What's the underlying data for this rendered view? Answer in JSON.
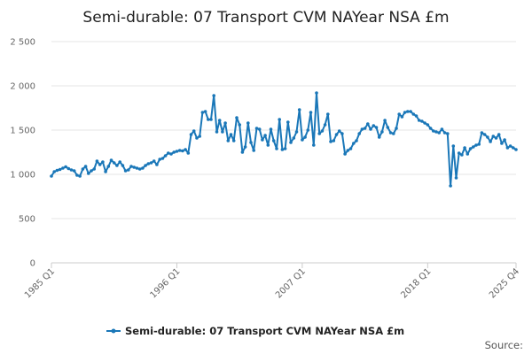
{
  "chart_data": {
    "type": "line",
    "title": "Semi-durable: 07 Transport CVM NAYear NSA £m",
    "xlabel": "",
    "ylabel": "",
    "ylim": [
      0,
      2500
    ],
    "yticks": [
      0,
      500,
      1000,
      1500,
      2000,
      2500
    ],
    "ytick_labels": [
      "0",
      "500",
      "1 000",
      "1 500",
      "2 000",
      "2 500"
    ],
    "x_range": [
      "1985 Q1",
      "2025 Q4"
    ],
    "xtick_labels": [
      {
        "label": "1985 Q1",
        "x": 1985.0
      },
      {
        "label": "1996 Q1",
        "x": 1996.0
      },
      {
        "label": "2007 Q1",
        "x": 2007.0
      },
      {
        "label": "2018 Q1",
        "x": 2018.0
      },
      {
        "label": "2025 Q4",
        "x": 2025.75
      }
    ],
    "grid": "horizontal",
    "legend_position": "bottom",
    "color": "#1a77b8",
    "source_label": "Source:",
    "series": [
      {
        "name": "Semi-durable: 07 Transport CVM NAYear NSA £m",
        "points": [
          [
            1985.0,
            980
          ],
          [
            1985.25,
            1030
          ],
          [
            1985.5,
            1045
          ],
          [
            1985.75,
            1055
          ],
          [
            1986.0,
            1070
          ],
          [
            1986.25,
            1085
          ],
          [
            1986.5,
            1065
          ],
          [
            1986.75,
            1050
          ],
          [
            1987.0,
            1040
          ],
          [
            1987.25,
            990
          ],
          [
            1987.5,
            980
          ],
          [
            1987.75,
            1060
          ],
          [
            1988.0,
            1090
          ],
          [
            1988.25,
            1010
          ],
          [
            1988.5,
            1040
          ],
          [
            1988.75,
            1060
          ],
          [
            1989.0,
            1150
          ],
          [
            1989.25,
            1110
          ],
          [
            1989.5,
            1140
          ],
          [
            1989.75,
            1030
          ],
          [
            1990.0,
            1090
          ],
          [
            1990.25,
            1160
          ],
          [
            1990.5,
            1130
          ],
          [
            1990.75,
            1100
          ],
          [
            1991.0,
            1140
          ],
          [
            1991.25,
            1100
          ],
          [
            1991.5,
            1040
          ],
          [
            1991.75,
            1050
          ],
          [
            1992.0,
            1090
          ],
          [
            1992.25,
            1080
          ],
          [
            1992.5,
            1070
          ],
          [
            1992.75,
            1060
          ],
          [
            1993.0,
            1070
          ],
          [
            1993.25,
            1100
          ],
          [
            1993.5,
            1120
          ],
          [
            1993.75,
            1130
          ],
          [
            1994.0,
            1150
          ],
          [
            1994.25,
            1110
          ],
          [
            1994.5,
            1170
          ],
          [
            1994.75,
            1180
          ],
          [
            1995.0,
            1210
          ],
          [
            1995.25,
            1240
          ],
          [
            1995.5,
            1230
          ],
          [
            1995.75,
            1250
          ],
          [
            1996.0,
            1260
          ],
          [
            1996.25,
            1270
          ],
          [
            1996.5,
            1265
          ],
          [
            1996.75,
            1280
          ],
          [
            1997.0,
            1240
          ],
          [
            1997.25,
            1450
          ],
          [
            1997.5,
            1490
          ],
          [
            1997.75,
            1410
          ],
          [
            1998.0,
            1430
          ],
          [
            1998.25,
            1700
          ],
          [
            1998.5,
            1710
          ],
          [
            1998.75,
            1620
          ],
          [
            1999.0,
            1620
          ],
          [
            1999.25,
            1890
          ],
          [
            1999.5,
            1480
          ],
          [
            1999.75,
            1610
          ],
          [
            2000.0,
            1480
          ],
          [
            2000.25,
            1580
          ],
          [
            2000.5,
            1380
          ],
          [
            2000.75,
            1450
          ],
          [
            2001.0,
            1380
          ],
          [
            2001.25,
            1640
          ],
          [
            2001.5,
            1560
          ],
          [
            2001.75,
            1250
          ],
          [
            2002.0,
            1310
          ],
          [
            2002.25,
            1580
          ],
          [
            2002.5,
            1360
          ],
          [
            2002.75,
            1270
          ],
          [
            2003.0,
            1520
          ],
          [
            2003.25,
            1510
          ],
          [
            2003.5,
            1390
          ],
          [
            2003.75,
            1440
          ],
          [
            2004.0,
            1330
          ],
          [
            2004.25,
            1510
          ],
          [
            2004.5,
            1380
          ],
          [
            2004.75,
            1290
          ],
          [
            2005.0,
            1620
          ],
          [
            2005.25,
            1280
          ],
          [
            2005.5,
            1290
          ],
          [
            2005.75,
            1590
          ],
          [
            2006.0,
            1360
          ],
          [
            2006.25,
            1410
          ],
          [
            2006.5,
            1480
          ],
          [
            2006.75,
            1730
          ],
          [
            2007.0,
            1390
          ],
          [
            2007.25,
            1420
          ],
          [
            2007.5,
            1500
          ],
          [
            2007.75,
            1700
          ],
          [
            2008.0,
            1330
          ],
          [
            2008.25,
            1920
          ],
          [
            2008.5,
            1460
          ],
          [
            2008.75,
            1490
          ],
          [
            2009.0,
            1560
          ],
          [
            2009.25,
            1680
          ],
          [
            2009.5,
            1370
          ],
          [
            2009.75,
            1380
          ],
          [
            2010.0,
            1450
          ],
          [
            2010.25,
            1490
          ],
          [
            2010.5,
            1460
          ],
          [
            2010.75,
            1230
          ],
          [
            2011.0,
            1270
          ],
          [
            2011.25,
            1290
          ],
          [
            2011.5,
            1350
          ],
          [
            2011.75,
            1380
          ],
          [
            2012.0,
            1460
          ],
          [
            2012.25,
            1510
          ],
          [
            2012.5,
            1520
          ],
          [
            2012.75,
            1570
          ],
          [
            2013.0,
            1510
          ],
          [
            2013.25,
            1550
          ],
          [
            2013.5,
            1530
          ],
          [
            2013.75,
            1420
          ],
          [
            2014.0,
            1480
          ],
          [
            2014.25,
            1610
          ],
          [
            2014.5,
            1530
          ],
          [
            2014.75,
            1470
          ],
          [
            2015.0,
            1460
          ],
          [
            2015.25,
            1520
          ],
          [
            2015.5,
            1680
          ],
          [
            2015.75,
            1650
          ],
          [
            2016.0,
            1700
          ],
          [
            2016.25,
            1710
          ],
          [
            2016.5,
            1710
          ],
          [
            2016.75,
            1680
          ],
          [
            2017.0,
            1660
          ],
          [
            2017.25,
            1610
          ],
          [
            2017.5,
            1600
          ],
          [
            2017.75,
            1580
          ],
          [
            2018.0,
            1560
          ],
          [
            2018.25,
            1520
          ],
          [
            2018.5,
            1490
          ],
          [
            2018.75,
            1480
          ],
          [
            2019.0,
            1470
          ],
          [
            2019.25,
            1510
          ],
          [
            2019.5,
            1470
          ],
          [
            2019.75,
            1460
          ],
          [
            2020.0,
            870
          ],
          [
            2020.25,
            1320
          ],
          [
            2020.5,
            960
          ],
          [
            2020.75,
            1240
          ],
          [
            2021.0,
            1220
          ],
          [
            2021.25,
            1300
          ],
          [
            2021.5,
            1230
          ],
          [
            2021.75,
            1290
          ],
          [
            2022.0,
            1310
          ],
          [
            2022.25,
            1330
          ],
          [
            2022.5,
            1340
          ],
          [
            2022.75,
            1470
          ],
          [
            2023.0,
            1450
          ],
          [
            2023.25,
            1420
          ],
          [
            2023.5,
            1370
          ],
          [
            2023.75,
            1430
          ],
          [
            2024.0,
            1410
          ],
          [
            2024.25,
            1450
          ],
          [
            2024.5,
            1350
          ],
          [
            2024.75,
            1390
          ],
          [
            2025.0,
            1300
          ],
          [
            2025.25,
            1320
          ],
          [
            2025.5,
            1300
          ],
          [
            2025.75,
            1280
          ]
        ]
      }
    ]
  }
}
